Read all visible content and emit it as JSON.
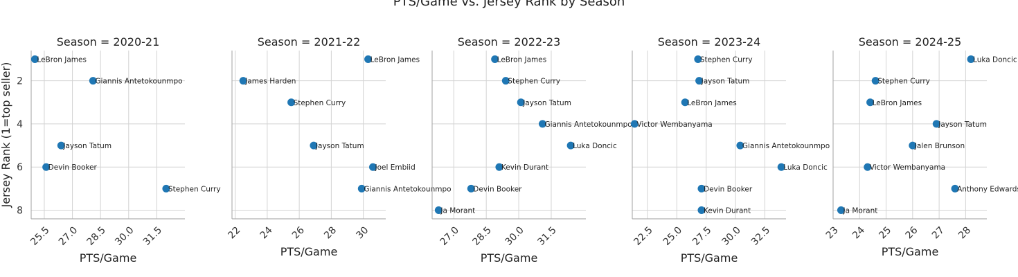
{
  "chart_data": {
    "type": "scatter",
    "title": "PTS/Game vs. Jersey Rank by Season",
    "xlabel": "PTS/Game",
    "ylabel": "Jersey Rank (1=top seller)",
    "y_inverted": true,
    "ylim": [
      8.4,
      0.6
    ],
    "y_ticks": [
      2,
      4,
      6,
      8
    ],
    "grid": true,
    "color": "#1f77b4",
    "panels": [
      {
        "title": "Season = 2020-21",
        "xlim": [
          24.8,
          33.0
        ],
        "x_ticks": [
          25.5,
          27.0,
          28.5,
          30.0,
          31.5
        ],
        "x_tick_labels": [
          "25.5",
          "27.0",
          "28.5",
          "30.0",
          "31.5"
        ],
        "points": [
          {
            "label": "LeBron James",
            "x": 25.0,
            "y": 1
          },
          {
            "label": "Giannis Antetokounmpo",
            "x": 28.1,
            "y": 2
          },
          {
            "label": "Jayson Tatum",
            "x": 26.4,
            "y": 5
          },
          {
            "label": "Devin Booker",
            "x": 25.6,
            "y": 6
          },
          {
            "label": "Stephen Curry",
            "x": 32.0,
            "y": 7
          }
        ]
      },
      {
        "title": "Season = 2021-22",
        "xlim": [
          21.8,
          31.4
        ],
        "x_ticks": [
          22,
          24,
          26,
          28,
          30
        ],
        "x_tick_labels": [
          "22",
          "24",
          "26",
          "28",
          "30"
        ],
        "points": [
          {
            "label": "LeBron James",
            "x": 30.3,
            "y": 1
          },
          {
            "label": "James Harden",
            "x": 22.5,
            "y": 2
          },
          {
            "label": "Stephen Curry",
            "x": 25.5,
            "y": 3
          },
          {
            "label": "Jayson Tatum",
            "x": 26.9,
            "y": 5
          },
          {
            "label": "Joel Embiid",
            "x": 30.6,
            "y": 6
          },
          {
            "label": "Giannis Antetokounmpo",
            "x": 29.9,
            "y": 7
          }
        ]
      },
      {
        "title": "Season = 2022-23",
        "xlim": [
          26.0,
          33.1
        ],
        "x_ticks": [
          27.0,
          28.5,
          30.0,
          31.5
        ],
        "x_tick_labels": [
          "27.0",
          "28.5",
          "30.0",
          "31.5"
        ],
        "points": [
          {
            "label": "LeBron James",
            "x": 28.9,
            "y": 1
          },
          {
            "label": "Stephen Curry",
            "x": 29.4,
            "y": 2
          },
          {
            "label": "Jayson Tatum",
            "x": 30.1,
            "y": 3
          },
          {
            "label": "Giannis Antetokounmpo",
            "x": 31.1,
            "y": 4
          },
          {
            "label": "Luka Doncic",
            "x": 32.4,
            "y": 5
          },
          {
            "label": "Kevin Durant",
            "x": 29.1,
            "y": 6
          },
          {
            "label": "Devin Booker",
            "x": 27.8,
            "y": 7
          },
          {
            "label": "Ja Morant",
            "x": 26.3,
            "y": 8
          }
        ]
      },
      {
        "title": "Season = 2023-24",
        "xlim": [
          21.2,
          34.3
        ],
        "x_ticks": [
          22.5,
          25.0,
          27.5,
          30.0,
          32.5
        ],
        "x_tick_labels": [
          "22.5",
          "25.0",
          "27.5",
          "30.0",
          "32.5"
        ],
        "points": [
          {
            "label": "Stephen Curry",
            "x": 26.8,
            "y": 1
          },
          {
            "label": "Jayson Tatum",
            "x": 26.9,
            "y": 2
          },
          {
            "label": "LeBron James",
            "x": 25.7,
            "y": 3
          },
          {
            "label": "Victor Wembanyama",
            "x": 21.4,
            "y": 4
          },
          {
            "label": "Giannis Antetokounmpo",
            "x": 30.4,
            "y": 5
          },
          {
            "label": "Luka Doncic",
            "x": 33.9,
            "y": 6
          },
          {
            "label": "Devin Booker",
            "x": 27.1,
            "y": 7
          },
          {
            "label": "Kevin Durant",
            "x": 27.1,
            "y": 8
          }
        ]
      },
      {
        "title": "Season = 2024-25",
        "xlim": [
          23.0,
          28.8
        ],
        "x_ticks": [
          23,
          24,
          25,
          26,
          27,
          28
        ],
        "x_tick_labels": [
          "23",
          "24",
          "25",
          "26",
          "27",
          "28"
        ],
        "points": [
          {
            "label": "Luka Doncic",
            "x": 28.2,
            "y": 1
          },
          {
            "label": "Stephen Curry",
            "x": 24.6,
            "y": 2
          },
          {
            "label": "LeBron James",
            "x": 24.4,
            "y": 3
          },
          {
            "label": "Jayson Tatum",
            "x": 26.9,
            "y": 4
          },
          {
            "label": "Jalen Brunson",
            "x": 26.0,
            "y": 5
          },
          {
            "label": "Victor Wembanyama",
            "x": 24.3,
            "y": 6
          },
          {
            "label": "Anthony Edwards",
            "x": 27.6,
            "y": 7
          },
          {
            "label": "Ja Morant",
            "x": 23.3,
            "y": 8
          }
        ]
      }
    ]
  }
}
